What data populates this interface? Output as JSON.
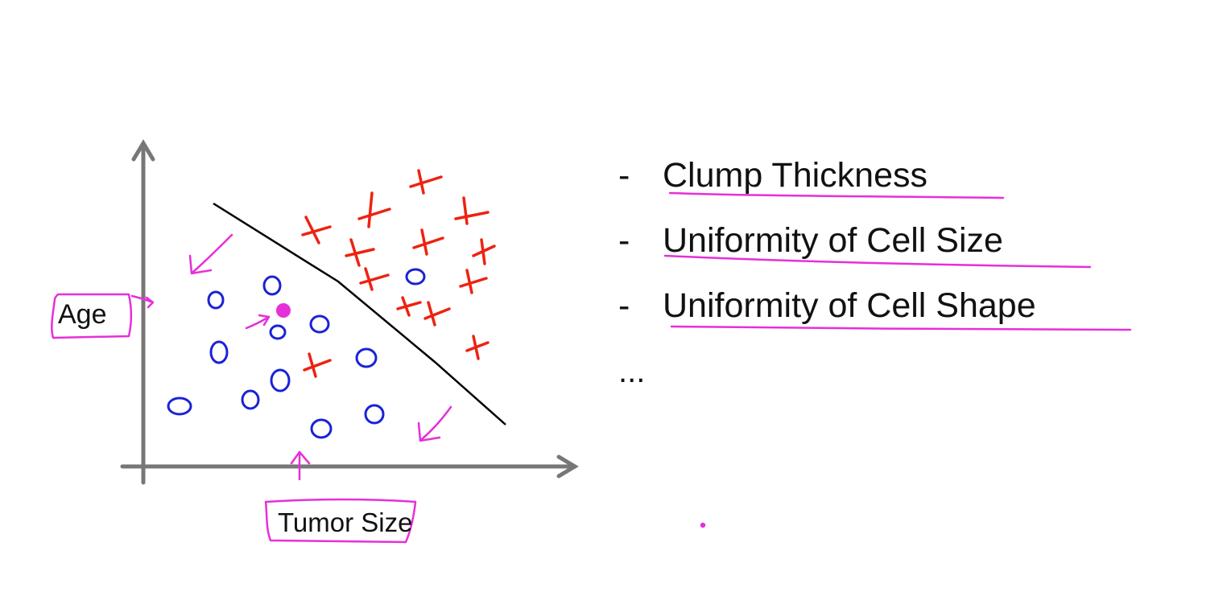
{
  "axes": {
    "y_label": "Age",
    "x_label": "Tumor Size"
  },
  "features": [
    {
      "label": "Clump Thickness"
    },
    {
      "label": "Uniformity of Cell Size"
    },
    {
      "label": "Uniformity of Cell Shape"
    }
  ],
  "ellipsis": "...",
  "colors": {
    "axis": "#777777",
    "benign_marker": "#1a22d6",
    "malignant_marker": "#ee2211",
    "annotation": "#e62fd9",
    "decision_line": "#000000"
  }
}
